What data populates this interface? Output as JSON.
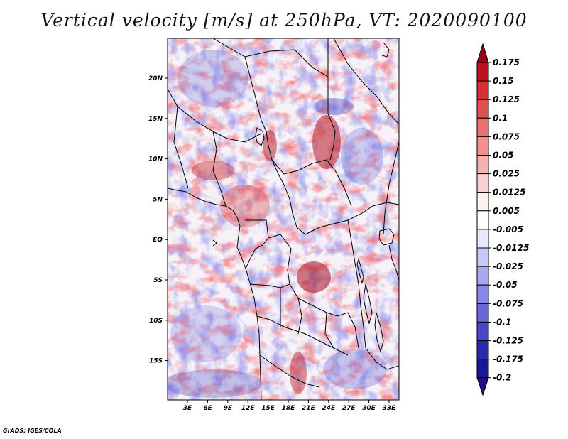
{
  "title": "Vertical velocity [m/s] at 250hPa, VT: 2020090100",
  "credit": "GrADS: IGES/COLA",
  "map": {
    "lat_labels": [
      "20N",
      "15N",
      "10N",
      "5N",
      "EQ",
      "5S",
      "10S",
      "15S"
    ],
    "lon_labels": [
      "3E",
      "6E",
      "9E",
      "12E",
      "15E",
      "18E",
      "21E",
      "24E",
      "27E",
      "30E",
      "33E"
    ]
  },
  "colorbar": {
    "labels": [
      "0.175",
      "0.15",
      "0.125",
      "0.1",
      "0.075",
      "0.05",
      "0.025",
      "0.0125",
      "0.005",
      "-0.005",
      "-0.0125",
      "-0.025",
      "-0.05",
      "-0.075",
      "-0.1",
      "-0.125",
      "-0.175",
      "-0.2"
    ],
    "colors": [
      "#a00010",
      "#c01020",
      "#d83030",
      "#e35050",
      "#ec7070",
      "#f29090",
      "#f8b0b0",
      "#fcd0d0",
      "#fff0f0",
      "#ffffff",
      "#e8e8ff",
      "#c8c8f8",
      "#a8a8f0",
      "#8888e8",
      "#6868d8",
      "#4848c8",
      "#2828b0",
      "#18189a",
      "#20108a"
    ]
  }
}
